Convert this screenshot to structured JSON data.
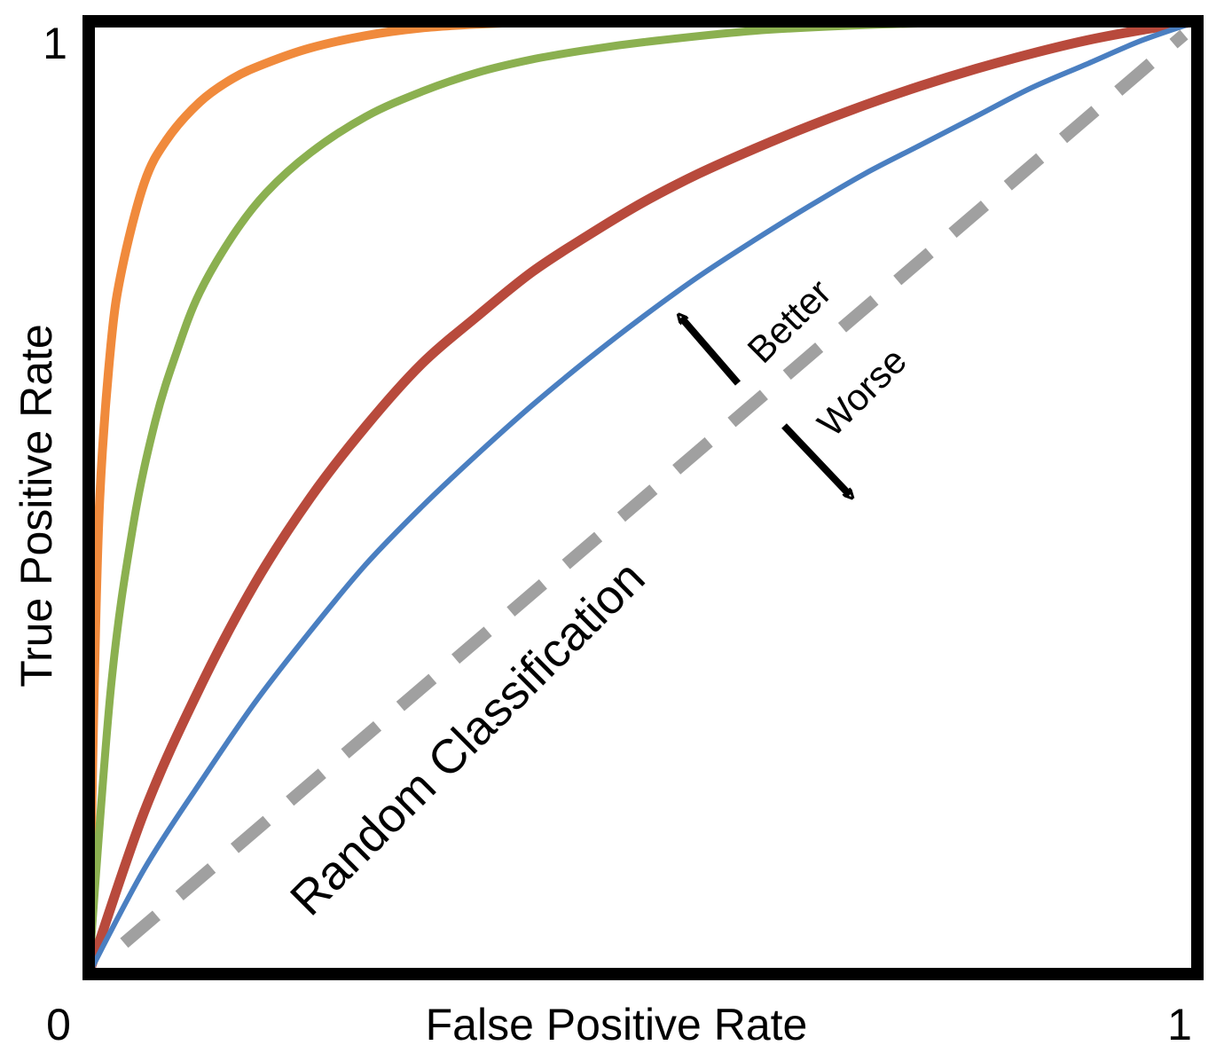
{
  "chart_data": {
    "type": "line",
    "xlabel": "False Positive Rate",
    "ylabel": "True Positive Rate",
    "xlim": [
      0,
      1
    ],
    "ylim": [
      0,
      1
    ],
    "x_ticks": [
      "0",
      "1"
    ],
    "y_ticks": [
      "1"
    ],
    "grid": false,
    "legend": "none",
    "series": [
      {
        "color": "#f08a3c",
        "x": [
          0,
          0.005,
          0.01,
          0.02,
          0.03,
          0.05,
          0.07,
          0.1,
          0.13,
          0.16,
          0.2,
          0.25,
          0.3,
          0.35,
          0.4,
          0.5,
          0.6,
          0.7,
          0.8,
          0.9,
          1.0
        ],
        "y": [
          0,
          0.3,
          0.5,
          0.66,
          0.74,
          0.83,
          0.875,
          0.915,
          0.94,
          0.956,
          0.972,
          0.985,
          0.993,
          0.997,
          0.999,
          1.0,
          1.0,
          1.0,
          1.0,
          1.0,
          1.0
        ]
      },
      {
        "color": "#8bb050",
        "x": [
          0,
          0.02,
          0.04,
          0.06,
          0.08,
          0.1,
          0.13,
          0.16,
          0.2,
          0.25,
          0.3,
          0.35,
          0.4,
          0.45,
          0.5,
          0.6,
          0.7,
          0.8,
          0.9,
          1.0
        ],
        "y": [
          0,
          0.3,
          0.47,
          0.58,
          0.655,
          0.715,
          0.775,
          0.82,
          0.862,
          0.9,
          0.926,
          0.946,
          0.96,
          0.97,
          0.978,
          0.99,
          0.996,
          0.999,
          1.0,
          1.0
        ]
      },
      {
        "color": "#b84a3c",
        "x": [
          0,
          0.05,
          0.1,
          0.15,
          0.2,
          0.25,
          0.3,
          0.35,
          0.4,
          0.45,
          0.5,
          0.55,
          0.6,
          0.65,
          0.7,
          0.75,
          0.8,
          0.85,
          0.9,
          0.95,
          1.0
        ],
        "y": [
          0,
          0.17,
          0.3,
          0.41,
          0.5,
          0.575,
          0.64,
          0.69,
          0.737,
          0.775,
          0.81,
          0.84,
          0.866,
          0.89,
          0.912,
          0.932,
          0.95,
          0.966,
          0.98,
          0.991,
          1.0
        ]
      },
      {
        "color": "#4a7fc1",
        "x": [
          0,
          0.05,
          0.1,
          0.15,
          0.2,
          0.25,
          0.3,
          0.35,
          0.4,
          0.45,
          0.5,
          0.55,
          0.6,
          0.65,
          0.7,
          0.75,
          0.8,
          0.85,
          0.9,
          0.95,
          1.0
        ],
        "y": [
          0,
          0.11,
          0.2,
          0.285,
          0.36,
          0.43,
          0.49,
          0.545,
          0.597,
          0.645,
          0.69,
          0.732,
          0.77,
          0.806,
          0.84,
          0.87,
          0.9,
          0.93,
          0.955,
          0.98,
          1.0
        ]
      }
    ],
    "reference_line": {
      "color": "#a0a0a0",
      "x": [
        0,
        1
      ],
      "y": [
        0,
        1
      ],
      "label": "Random Classification"
    },
    "annotations": {
      "better": "Better",
      "worse": "Worse"
    }
  }
}
